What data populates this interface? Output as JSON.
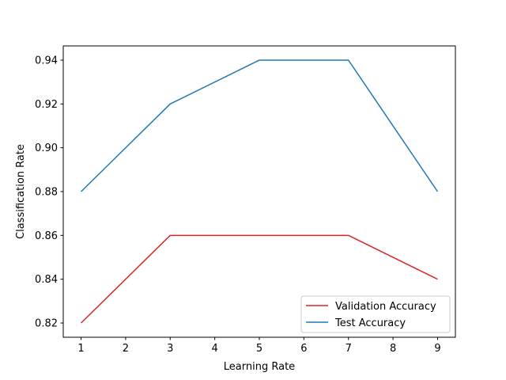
{
  "chart_data": {
    "type": "line",
    "title": "",
    "xlabel": "Learning Rate",
    "ylabel": "Classification Rate",
    "x": [
      1,
      3,
      5,
      7,
      9
    ],
    "xlim": [
      0.6,
      9.4
    ],
    "ylim": [
      0.8135,
      0.9465
    ],
    "xticks": [
      1,
      2,
      3,
      4,
      5,
      6,
      7,
      8,
      9
    ],
    "yticks": [
      0.82,
      0.84,
      0.86,
      0.88,
      0.9,
      0.92,
      0.94
    ],
    "ytick_labels": [
      "0.82",
      "0.84",
      "0.86",
      "0.88",
      "0.90",
      "0.92",
      "0.94"
    ],
    "grid": false,
    "legend_position": "lower-right",
    "series": [
      {
        "name": "Validation Accuracy",
        "color": "#d62728",
        "values": [
          0.82,
          0.86,
          0.86,
          0.86,
          0.84
        ]
      },
      {
        "name": "Test Accuracy",
        "color": "#1f77b4",
        "values": [
          0.88,
          0.92,
          0.94,
          0.94,
          0.88
        ]
      }
    ]
  }
}
